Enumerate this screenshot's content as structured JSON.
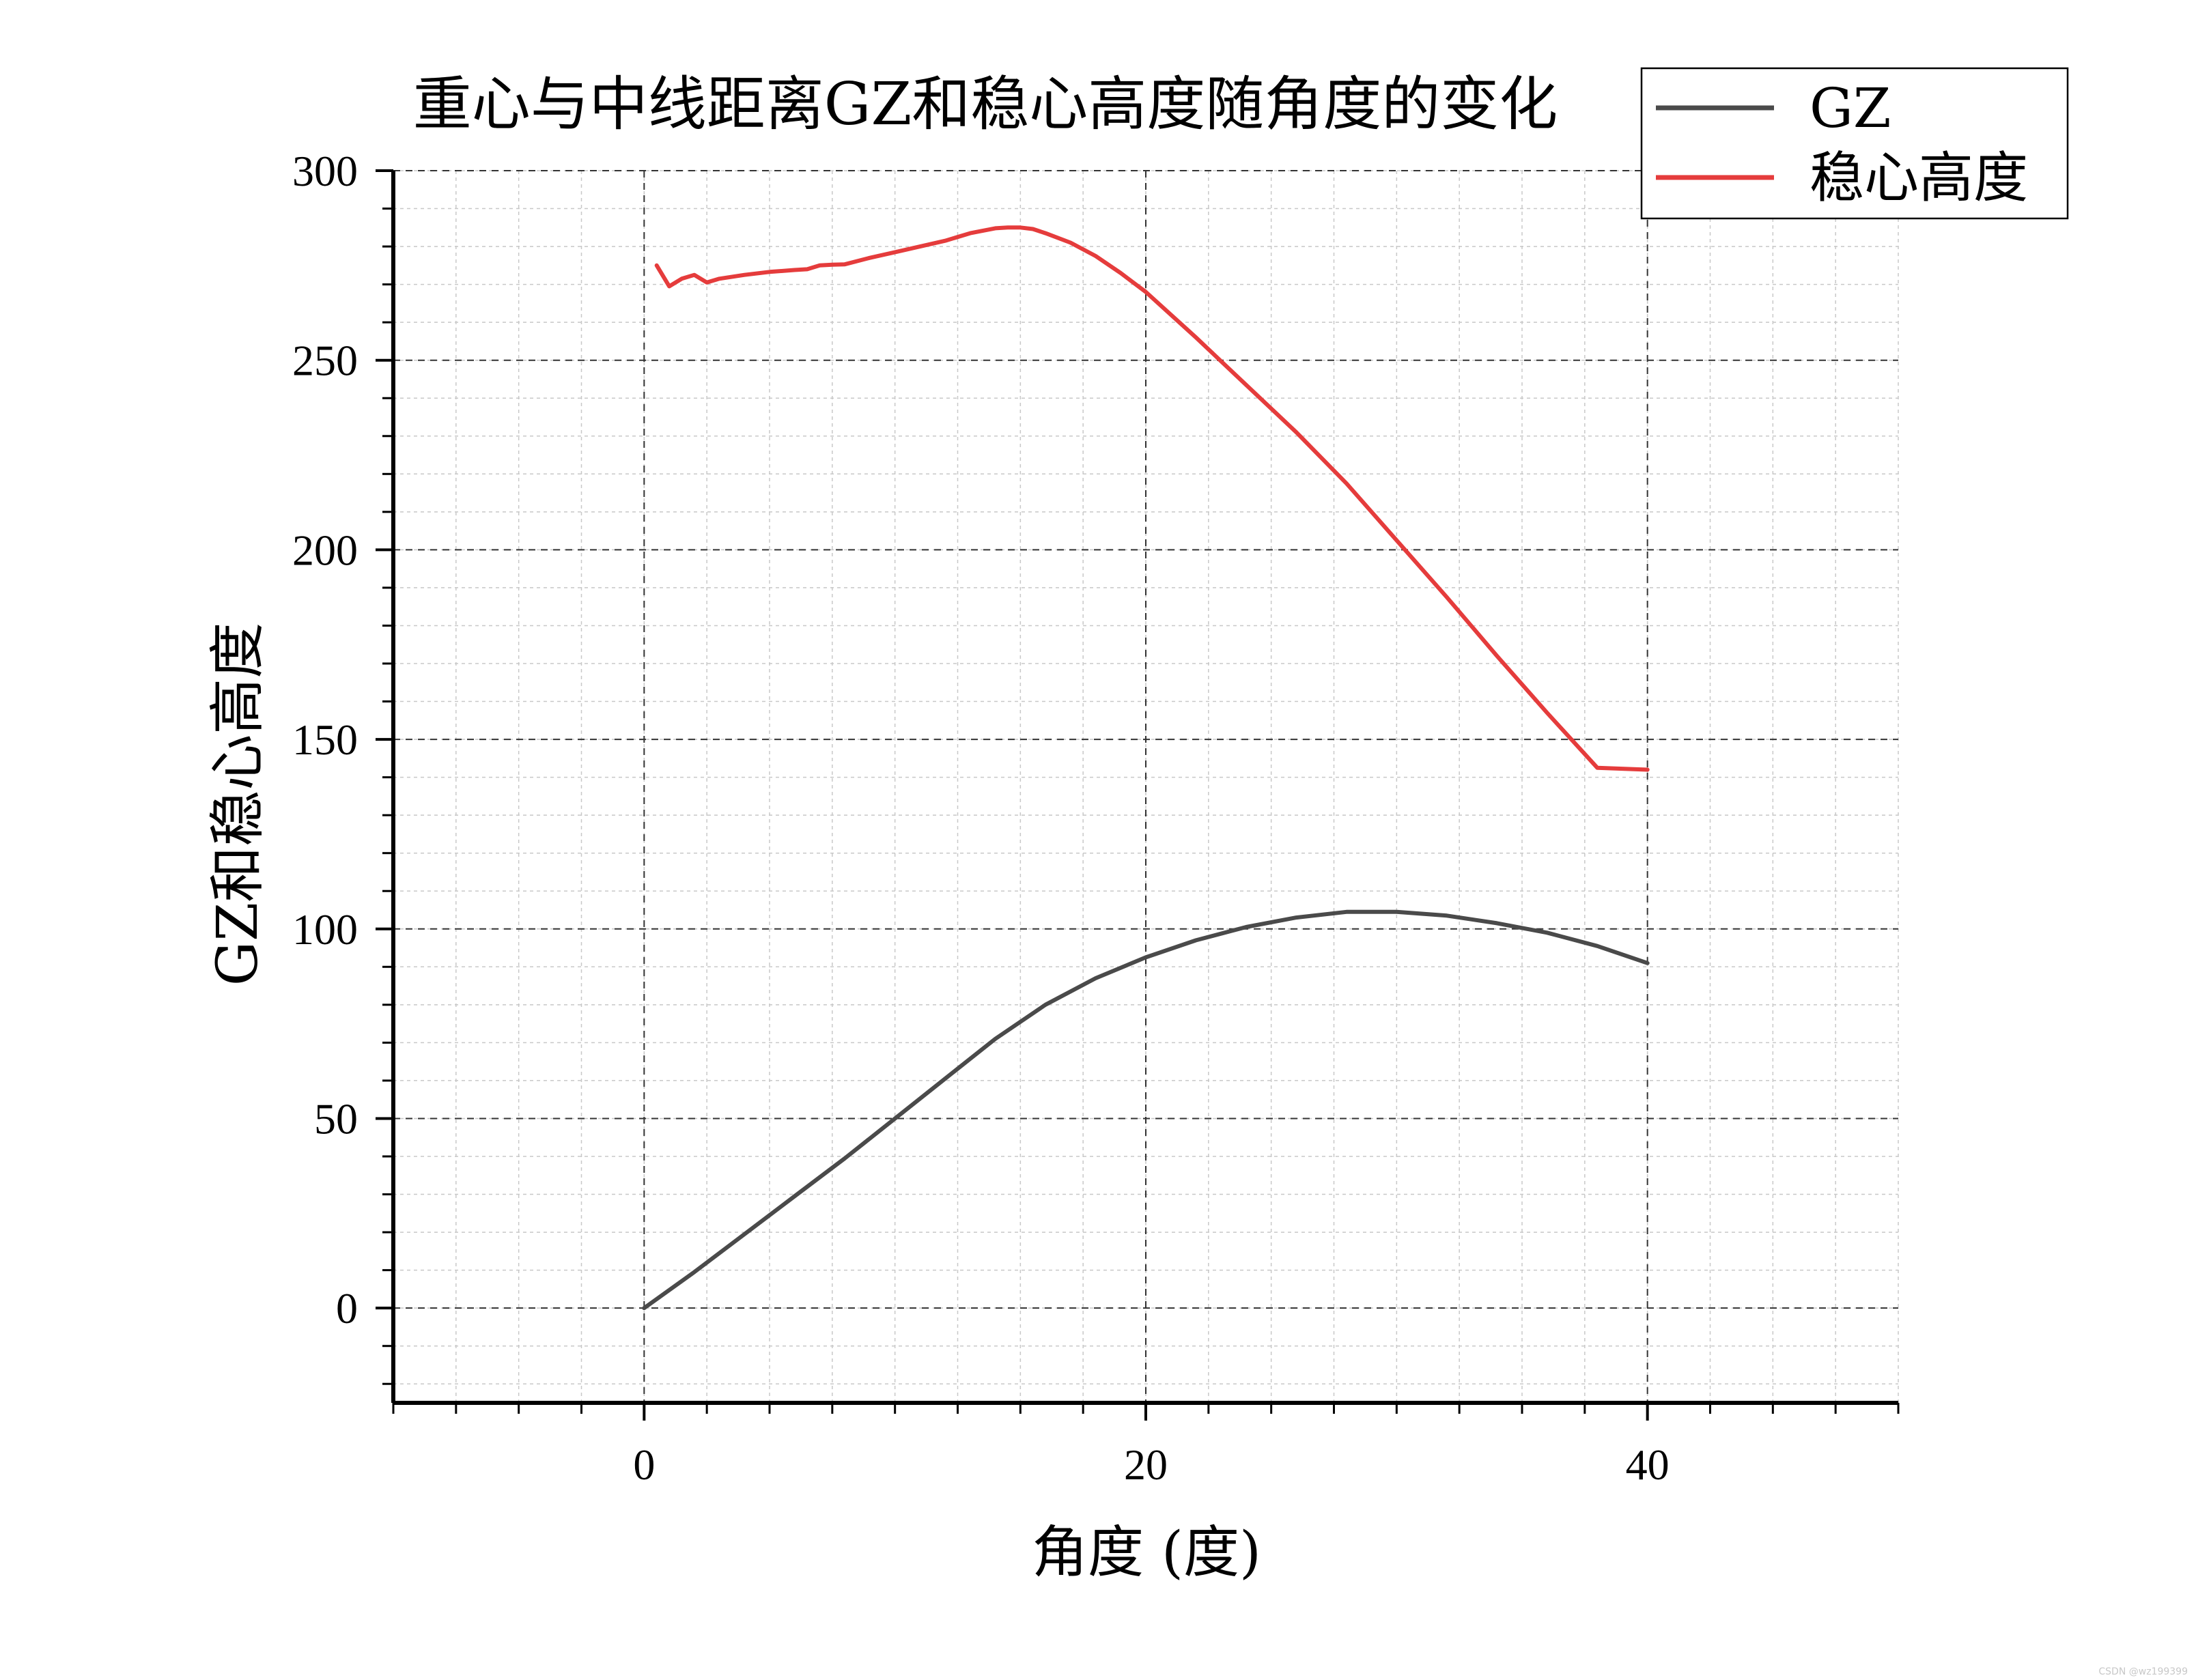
{
  "chart_data": {
    "type": "line",
    "title": "重心与中线距离GZ和稳心高度随角度的变化",
    "xlabel": "角度 (度)",
    "ylabel": "GZ和稳心高度",
    "xlim": [
      -10,
      50
    ],
    "ylim": [
      -25,
      300
    ],
    "x_ticks": [
      0,
      20,
      40
    ],
    "y_ticks": [
      0,
      50,
      100,
      150,
      200,
      250,
      300
    ],
    "x_tick_labels": [
      "0",
      "20",
      "40"
    ],
    "y_tick_labels": [
      "0",
      "50",
      "100",
      "150",
      "200",
      "250",
      "300"
    ],
    "grid": {
      "major": true,
      "minor": true,
      "major_style": "dashed",
      "minor_style": "dotted"
    },
    "legend": {
      "position": "top-right"
    },
    "series": [
      {
        "name": "GZ",
        "color": "#4a4a4a",
        "x": [
          0,
          2,
          4,
          6,
          8,
          10,
          12,
          14,
          16,
          18,
          20,
          22,
          24,
          26,
          28,
          30,
          32,
          34,
          36,
          38,
          40
        ],
        "values": [
          0,
          9.5,
          19.5,
          29.5,
          39.5,
          50,
          60.5,
          71,
          80,
          87,
          92.5,
          97,
          100.5,
          103,
          104.5,
          104.5,
          103.5,
          101.5,
          99,
          95.5,
          91
        ]
      },
      {
        "name": "稳心高度",
        "color": "#e53c3c",
        "x": [
          0.5,
          1,
          1.5,
          2,
          2.5,
          3,
          4,
          5,
          6,
          6.5,
          7,
          7.5,
          8,
          9,
          10,
          11,
          12,
          13,
          14,
          14.5,
          15,
          15.5,
          16,
          17,
          18,
          19,
          20,
          22,
          24,
          26,
          28,
          30,
          32,
          34,
          36,
          38,
          40
        ],
        "values": [
          275,
          269.5,
          271.5,
          272.5,
          270.5,
          271.5,
          272.5,
          273.3,
          273.8,
          274,
          275,
          275.2,
          275.3,
          277,
          278.5,
          280,
          281.5,
          283.5,
          284.8,
          285,
          285,
          284.6,
          283.5,
          281,
          277.5,
          273,
          268,
          256,
          243.5,
          231,
          217.5,
          202.5,
          187.5,
          172,
          157,
          142.5,
          142
        ]
      }
    ]
  },
  "watermark": "CSDN @wz199399"
}
